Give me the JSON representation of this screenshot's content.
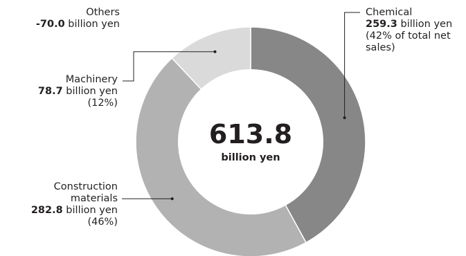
{
  "center": {
    "total": "613.8",
    "unit": "billion yen"
  },
  "labels": {
    "others": {
      "name": "Others",
      "value": "-70.0",
      "unit": " billion yen"
    },
    "machinery": {
      "name": "Machinery",
      "value": "78.7",
      "unit": " billion yen",
      "share": "(12%)"
    },
    "construction": {
      "name_line1": "Construction",
      "name_line2": "materials",
      "value": "282.8",
      "unit": " billion yen",
      "share": "(46%)"
    },
    "chemical": {
      "name": "Chemical",
      "value": "259.3",
      "unit": " billion yen",
      "share_line1": "(42% of total net",
      "share_line2": "sales)"
    }
  },
  "chart_data": {
    "type": "pie",
    "variant": "donut",
    "title": "",
    "center_label": "613.8 billion yen",
    "unit": "billion yen",
    "categories": [
      "Chemical",
      "Construction materials",
      "Machinery",
      "Others"
    ],
    "values": [
      259.3,
      282.8,
      78.7,
      -70.0
    ],
    "percent_of_total": [
      42,
      46,
      12,
      null
    ],
    "slice_shares": [
      0.42,
      0.46,
      0.12
    ],
    "legend": "none",
    "colors": {
      "Chemical": "#878787",
      "Construction materials": "#b2b2b2",
      "Machinery": "#dadada"
    }
  }
}
